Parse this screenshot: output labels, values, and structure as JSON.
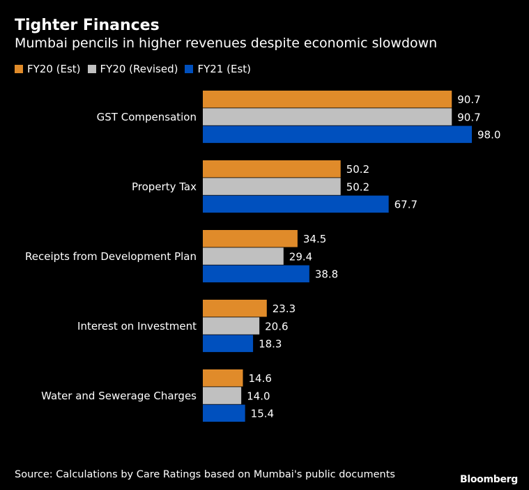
{
  "chart_data": {
    "type": "bar",
    "orientation": "horizontal",
    "title": "Tighter Finances",
    "subtitle": "Mumbai pencils in higher revenues despite economic slowdown",
    "categories": [
      "GST Compensation",
      "Property Tax",
      "Receipts from Development Plan",
      "Interest on Investment",
      "Water and Sewerage Charges"
    ],
    "series": [
      {
        "name": "FY20 (Est)",
        "color": "#e08b2a",
        "values": [
          90.7,
          50.2,
          34.5,
          23.3,
          14.6
        ]
      },
      {
        "name": "FY20 (Revised)",
        "color": "#c0c0c0",
        "values": [
          90.7,
          50.2,
          29.4,
          20.6,
          14.0
        ]
      },
      {
        "name": "FY21 (Est)",
        "color": "#0050be",
        "values": [
          98.0,
          67.7,
          38.8,
          18.3,
          15.4
        ]
      }
    ],
    "xlim": [
      0,
      100
    ],
    "grid": false,
    "legend": "top-left",
    "data_labels": true,
    "source": "Source: Calculations by Care Ratings based on Mumbai's public documents",
    "logo": "Bloomberg"
  }
}
